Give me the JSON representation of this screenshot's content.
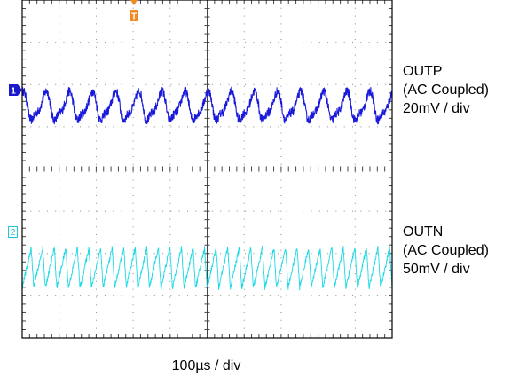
{
  "chart_data": {
    "type": "line",
    "time_per_div": "100µs / div",
    "divisions": {
      "horizontal": 10,
      "vertical": 8
    },
    "trigger_marker": "T",
    "series": [
      {
        "channel_marker": "1",
        "name_line": "OUTP",
        "coupling": "(AC Coupled)",
        "scale": "20mV / div",
        "color": "#1a1adc",
        "offset_div": 5.47,
        "waveform": "ripple with ~16 peaks per screen",
        "cycles_per_screen": 16,
        "peak_to_peak_div": 0.75
      },
      {
        "channel_marker": "2",
        "name_line": "OUTN",
        "coupling": "(AC Coupled)",
        "scale": "50mV / div",
        "color": "#19d9e6",
        "offset_div": 1.66,
        "waveform": "sawtooth ripple with ~32 ramps per screen",
        "cycles_per_screen": 32,
        "peak_to_peak_div": 0.95
      }
    ],
    "grid": true
  }
}
